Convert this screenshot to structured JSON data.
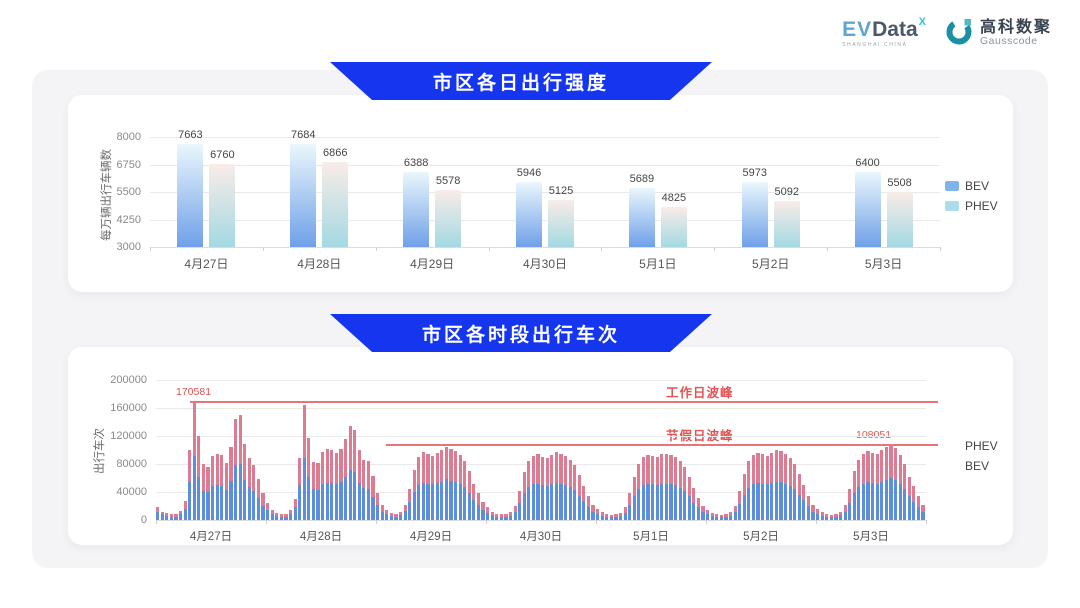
{
  "header": {
    "evdata": {
      "ev": "EV",
      "rest": "Data",
      "sup": "X",
      "tagline": "SHANGHAI CHINA"
    },
    "gausscode": {
      "cn": "高科数聚",
      "en": "Gausscode"
    }
  },
  "chart_data": [
    {
      "type": "bar",
      "title": "市区各日出行强度",
      "ylabel": "每万辆出行车辆数",
      "ylim": [
        3000,
        8000
      ],
      "yticks": [
        8000,
        6750,
        5500,
        4250,
        3000
      ],
      "grid": true,
      "legend_position": "right",
      "legend": [
        "BEV",
        "PHEV"
      ],
      "categories": [
        "4月27日",
        "4月28日",
        "4月29日",
        "4月30日",
        "5月1日",
        "5月2日",
        "5月3日"
      ],
      "series": [
        {
          "name": "BEV",
          "values": [
            7663,
            7684,
            6388,
            5946,
            5689,
            5973,
            6400
          ]
        },
        {
          "name": "PHEV",
          "values": [
            6760,
            6866,
            5578,
            5125,
            4825,
            5092,
            5508
          ]
        }
      ]
    },
    {
      "type": "bar",
      "subtype": "stacked-hourly",
      "title": "市区各时段出行车次",
      "ylabel": "出行车次",
      "ylim": [
        0,
        200000
      ],
      "yticks": [
        200000,
        160000,
        120000,
        80000,
        40000,
        0
      ],
      "grid": true,
      "legend_position": "right",
      "legend": [
        "PHEV",
        "BEV"
      ],
      "days": [
        "4月27日",
        "4月28日",
        "4月29日",
        "4月30日",
        "5月1日",
        "5月2日",
        "5月3日"
      ],
      "series": [
        {
          "name": "BEV",
          "values_by_day": [
            [
              11000,
              8000,
              6000,
              5000,
              5000,
              8000,
              16000,
              55000,
              91000,
              62000,
              42000,
              40000,
              48000,
              50000,
              49000,
              43000,
              56000,
              78000,
              80000,
              57000,
              47000,
              41000,
              31000,
              20000
            ],
            [
              14000,
              9000,
              6000,
              5000,
              5000,
              8000,
              18000,
              50000,
              88000,
              61000,
              44000,
              43000,
              51000,
              53000,
              53000,
              51000,
              54000,
              62000,
              71000,
              68000,
              53000,
              46000,
              45000,
              33000
            ],
            [
              21000,
              12000,
              8000,
              6000,
              5000,
              7000,
              13000,
              26000,
              40000,
              50000,
              53000,
              52000,
              51000,
              53000,
              55000,
              58000,
              56000,
              54000,
              51000,
              47000,
              39000,
              29000,
              21000,
              14000
            ],
            [
              10000,
              7000,
              5000,
              5000,
              5000,
              6000,
              12000,
              24000,
              38000,
              47000,
              51000,
              52000,
              50000,
              49000,
              51000,
              53000,
              52000,
              50000,
              47000,
              43000,
              35000,
              27000,
              19000,
              12000
            ],
            [
              9000,
              6000,
              5000,
              4000,
              5000,
              6000,
              10000,
              21000,
              34000,
              44000,
              50000,
              51000,
              51000,
              50000,
              52000,
              52000,
              51000,
              50000,
              46000,
              42000,
              34000,
              25000,
              18000,
              11000
            ],
            [
              8000,
              6000,
              5000,
              4000,
              5000,
              6000,
              11000,
              23000,
              36000,
              46000,
              51000,
              53000,
              52000,
              51000,
              53000,
              55000,
              54000,
              52000,
              48000,
              44000,
              36000,
              28000,
              20000,
              12000
            ],
            [
              9000,
              6000,
              5000,
              4000,
              5000,
              7000,
              12000,
              25000,
              38000,
              47000,
              52000,
              54000,
              53000,
              52000,
              55000,
              57000,
              60000,
              57000,
              51000,
              44000,
              34000,
              26000,
              19000,
              12000
            ]
          ]
        },
        {
          "name": "PHEV",
          "values_by_day": [
            [
              7000,
              4000,
              4000,
              3000,
              3000,
              5000,
              11000,
              45000,
              79581,
              58000,
              38000,
              36000,
              44000,
              45000,
              44000,
              39000,
              49000,
              67000,
              70000,
              51000,
              42000,
              37000,
              27000,
              18000
            ],
            [
              10000,
              6000,
              4000,
              3000,
              4000,
              6000,
              12000,
              38000,
              77000,
              56000,
              39000,
              39000,
              46000,
              48000,
              47000,
              45000,
              48000,
              54000,
              63000,
              61000,
              47000,
              40000,
              40000,
              30000
            ],
            [
              17000,
              10000,
              6000,
              4000,
              4000,
              5000,
              9000,
              19000,
              32000,
              40000,
              44000,
              43000,
              41000,
              43000,
              45000,
              47000,
              46000,
              44000,
              42000,
              38000,
              31000,
              23000,
              17000,
              12000
            ],
            [
              8000,
              5000,
              4000,
              3000,
              3000,
              5000,
              8000,
              18000,
              30000,
              38000,
              41000,
              42000,
              40000,
              39000,
              42000,
              44000,
              43000,
              41000,
              39000,
              35000,
              29000,
              21000,
              15000,
              10000
            ],
            [
              7000,
              5000,
              3000,
              3000,
              3000,
              4000,
              8000,
              17000,
              28000,
              36000,
              40000,
              42000,
              41000,
              40000,
              42000,
              43000,
              42000,
              40000,
              38000,
              34000,
              28000,
              21000,
              14000,
              9000
            ],
            [
              7000,
              4000,
              3000,
              3000,
              3000,
              5000,
              9000,
              19000,
              30000,
              38000,
              42000,
              43000,
              42000,
              41000,
              43000,
              45000,
              44000,
              42000,
              40000,
              36000,
              30000,
              22000,
              15000,
              10000
            ],
            [
              7000,
              5000,
              3000,
              3000,
              3000,
              5000,
              10000,
              20000,
              32000,
              39000,
              42000,
              44000,
              43000,
              43000,
              45000,
              47000,
              48051,
              46000,
              42000,
              36000,
              28000,
              22000,
              16000,
              10000
            ]
          ]
        }
      ],
      "annotations": {
        "workday": {
          "label": "工作日波峰",
          "value": 170581,
          "value_label": "170581"
        },
        "holiday": {
          "label": "节假日波峰",
          "value": 108051,
          "value_label": "108051"
        }
      }
    }
  ],
  "colors": {
    "banner": "#1536ee",
    "daily_bev_gradient": [
      "#eaf7fc",
      "#6fa0e8"
    ],
    "daily_phev_gradient": [
      "#f9ece8",
      "#a3d9e2"
    ],
    "daily_legend_bev": "#7db4ea",
    "daily_legend_phev": "#abdce9",
    "hourly_bev": "#5d8edd",
    "hourly_phev": "#dd7b93",
    "annotation_red": "#e25353"
  }
}
